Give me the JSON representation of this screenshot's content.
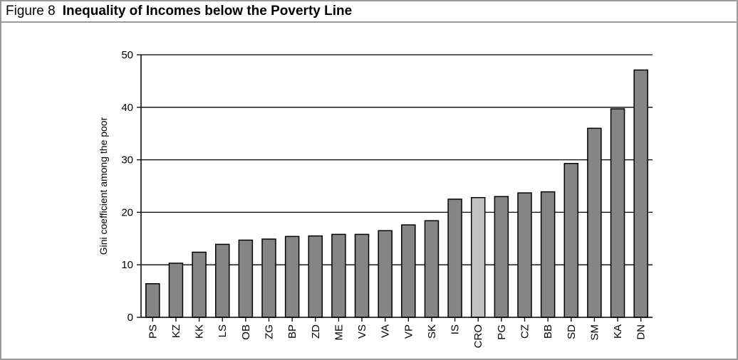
{
  "figure": {
    "label": "Figure 8",
    "title": "Inequality of Incomes below the Poverty Line"
  },
  "colors": {
    "bar": "#858585",
    "highlight_bar": "#c2c2c2",
    "bar_stroke": "#000000",
    "frame": "#9a9a9a"
  },
  "chart_data": {
    "type": "bar",
    "title": "Inequality of Incomes below the Poverty Line",
    "xlabel": "",
    "ylabel": "Gini coefficient among the poor",
    "ylim": [
      0,
      50
    ],
    "yticks": [
      0,
      10,
      20,
      30,
      40,
      50
    ],
    "grid": "horizontal",
    "categories": [
      "PS",
      "KZ",
      "KK",
      "LS",
      "OB",
      "ZG",
      "BP",
      "ZD",
      "ME",
      "VS",
      "VA",
      "VP",
      "SK",
      "IS",
      "CRO",
      "PG",
      "CZ",
      "BB",
      "SD",
      "SM",
      "KA",
      "DN"
    ],
    "values": [
      6.4,
      10.3,
      12.4,
      13.9,
      14.7,
      14.9,
      15.4,
      15.5,
      15.8,
      15.8,
      16.5,
      17.6,
      18.4,
      22.5,
      22.8,
      23.0,
      23.7,
      23.9,
      29.3,
      36.0,
      39.7,
      47.1
    ],
    "highlight": "CRO"
  }
}
